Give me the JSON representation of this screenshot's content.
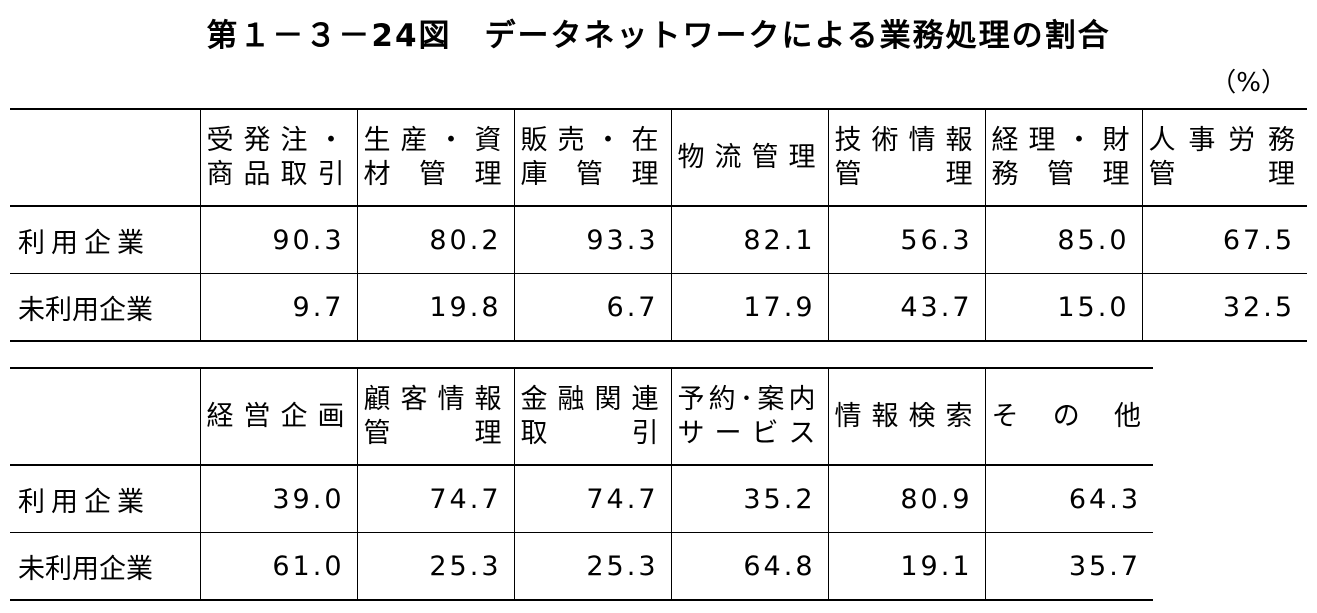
{
  "title": "第１－３－24図　データネットワークによる業務処理の割合",
  "unit": "（%）",
  "table1": {
    "headers": [
      [
        "受発注・",
        "商品取引"
      ],
      [
        "生産・資",
        "材管理"
      ],
      [
        "販売・在",
        "庫管理"
      ],
      [
        "物流管理"
      ],
      [
        "技術情報",
        "管理"
      ],
      [
        "経理・財",
        "務管理"
      ],
      [
        "人事労務",
        "管理"
      ]
    ],
    "rows": [
      {
        "label": "利用企業",
        "values": [
          "90.3",
          "80.2",
          "93.3",
          "82.1",
          "56.3",
          "85.0",
          "67.5"
        ]
      },
      {
        "label": "未利用企業",
        "values": [
          "9.7",
          "19.8",
          "6.7",
          "17.9",
          "43.7",
          "15.0",
          "32.5"
        ]
      }
    ]
  },
  "table2": {
    "headers": [
      [
        "経営企画"
      ],
      [
        "顧客情報",
        "管理"
      ],
      [
        "金融関連",
        "取引"
      ],
      [
        "予約･案内",
        "サービス"
      ],
      [
        "情報検索"
      ],
      [
        "その他"
      ]
    ],
    "rows": [
      {
        "label": "利用企業",
        "values": [
          "39.0",
          "74.7",
          "74.7",
          "35.2",
          "80.9",
          "64.3"
        ]
      },
      {
        "label": "未利用企業",
        "values": [
          "61.0",
          "25.3",
          "25.3",
          "64.8",
          "19.1",
          "35.7"
        ]
      }
    ]
  }
}
